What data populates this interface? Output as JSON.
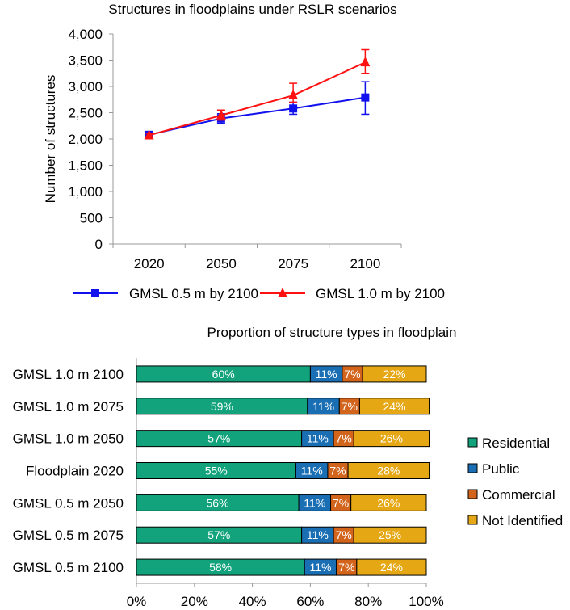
{
  "colors": {
    "series_05": "#1111ee",
    "series_10": "#ff1111",
    "residential": "#12a37c",
    "public": "#1a6fb4",
    "commercial": "#d2641c",
    "not_identified": "#e5a714",
    "axis": "#999999"
  },
  "chart_data": [
    {
      "type": "line",
      "title": "Structures in floodplains under RSLR scenarios",
      "xlabel": "",
      "ylabel": "Number of structures",
      "categories": [
        "2020",
        "2050",
        "2075",
        "2100"
      ],
      "ylim": [
        0,
        4000
      ],
      "yticks": [
        0,
        500,
        1000,
        1500,
        2000,
        2500,
        3000,
        3500,
        4000
      ],
      "ytick_labels": [
        "0",
        "500",
        "1,000",
        "1,500",
        "2,000",
        "2,500",
        "3,000",
        "3,500",
        "4,000"
      ],
      "grid": false,
      "legend": "bottom",
      "series": [
        {
          "name": "GMSL 0.5 m by 2100",
          "marker": "square",
          "values": [
            2080,
            2390,
            2580,
            2790
          ],
          "err_low": [
            2040,
            2300,
            2470,
            2470
          ],
          "err_high": [
            2120,
            2480,
            2700,
            3090
          ]
        },
        {
          "name": "GMSL 1.0 m by 2100",
          "marker": "triangle",
          "values": [
            2070,
            2450,
            2830,
            3460
          ],
          "err_low": [
            2040,
            2360,
            2700,
            3250
          ],
          "err_high": [
            2110,
            2550,
            3060,
            3700
          ]
        }
      ]
    },
    {
      "type": "bar",
      "orientation": "horizontal",
      "stacked": true,
      "title": "Proportion of structure types in floodplain",
      "categories": [
        "GMSL 1.0 m 2100",
        "GMSL 1.0 m 2075",
        "GMSL 1.0 m 2050",
        "Floodplain 2020",
        "GMSL 0.5 m 2050",
        "GMSL 0.5 m 2075",
        "GMSL 0.5 m 2100"
      ],
      "xlim": [
        0,
        100
      ],
      "xticks": [
        "0%",
        "20%",
        "40%",
        "60%",
        "80%",
        "100%"
      ],
      "legend": "right",
      "series": [
        {
          "name": "Residential",
          "color_key": "residential",
          "values": [
            60,
            59,
            57,
            55,
            56,
            57,
            58
          ],
          "labels": [
            "60%",
            "59%",
            "57%",
            "55%",
            "56%",
            "57%",
            "58%"
          ]
        },
        {
          "name": "Public",
          "color_key": "public",
          "values": [
            11,
            11,
            11,
            11,
            11,
            11,
            11
          ],
          "labels": [
            "11%",
            "11%",
            "11%",
            "11%",
            "11%",
            "11%",
            "11%"
          ]
        },
        {
          "name": "Commercial",
          "color_key": "commercial",
          "values": [
            7,
            7,
            7,
            7,
            7,
            7,
            7
          ],
          "labels": [
            "7%",
            "7%",
            "7%",
            "7%",
            "7%",
            "7%",
            "7%"
          ]
        },
        {
          "name": "Not Identified",
          "color_key": "not_identified",
          "values": [
            22,
            24,
            26,
            28,
            26,
            25,
            24
          ],
          "labels": [
            "22%",
            "24%",
            "26%",
            "28%",
            "26%",
            "25%",
            "24%"
          ]
        }
      ]
    }
  ]
}
